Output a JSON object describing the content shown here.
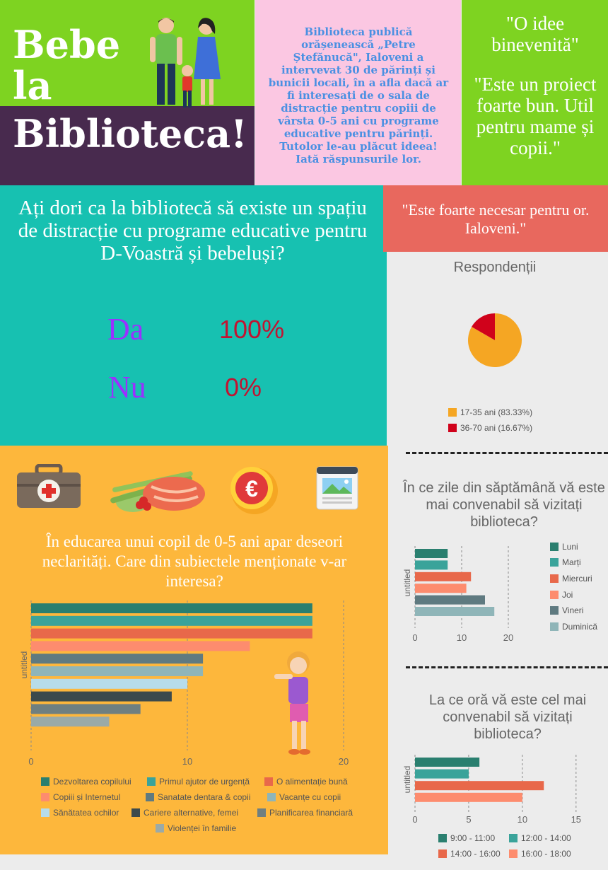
{
  "header": {
    "title_line1": "Bebe",
    "title_line2": "la",
    "title_line3": "Biblioteca!",
    "intro": "Biblioteca publică orășenească „Petre Ștefănucă\", Ialoveni a intervevat 30 de părinți și bunicii locali, în a afla dacă ar fi interesați de o sala de distracție pentru copiii de vârsta 0-5 ani cu programe educative pentru părinți. Tutolor le-au plăcut ideea! Iată răspunsurile lor.",
    "quote1": "\"O idee binevenită\"",
    "quote2": "\"Este un proiect foarte bun. Util pentru mame și copii.\""
  },
  "question": {
    "text": "Ați dori ca la bibliotecă să existe un spațiu de distracție cu programe educative pentru D-Voastră și bebeluși?",
    "yes_label": "Da",
    "yes_value": "100%",
    "no_label": "Nu",
    "no_value": "0%"
  },
  "quote3": "\"Este foarte necesar pentru or. Ialoveni.\"",
  "icons": [
    "medical-kit-icon",
    "food-icon",
    "euro-coin-icon",
    "newspaper-icon"
  ],
  "education_question": "În educarea unui copil de 0-5 ani apar deseori neclarități. Care din subiectele menționate v-ar interesa?",
  "chart_data": [
    {
      "type": "pie",
      "title": "Respondenții",
      "categories": [
        "17-35 ani (83.33%)",
        "36-70 ani (16.67%)"
      ],
      "values": [
        83.33,
        16.67
      ],
      "colors": [
        "#f5a623",
        "#d0021b"
      ],
      "legend": "bottom-left"
    },
    {
      "type": "bar",
      "orientation": "horizontal",
      "title": "În educarea unui copil de 0-5 ani apar deseori neclarități. Care din subiectele menționate v-ar interesa?",
      "ylabel": "untitled",
      "categories": [
        "Dezvoltarea copilului",
        "Primul ajutor de urgență",
        "O alimentație bună",
        "Copiii și Internetul",
        "Sanatate dentara & copii",
        "Vacanțe cu copii",
        "Sănătatea ochilor",
        "Cariere alternative, femei",
        "Planificarea financiară",
        "Violenței în familie"
      ],
      "values": [
        18,
        18,
        18,
        14,
        11,
        11,
        10,
        9,
        7,
        5
      ],
      "colors": [
        "#2a7f6f",
        "#3aa39a",
        "#e8684a",
        "#fd8c6e",
        "#5f7a80",
        "#8fb5b8",
        "#b7dcea",
        "#3c4a4c",
        "#6f7f80",
        "#9aaaa8"
      ],
      "xlim": [
        0,
        20
      ],
      "xticks": [
        0,
        10,
        20
      ],
      "grid": true,
      "legend": "bottom"
    },
    {
      "type": "bar",
      "orientation": "horizontal",
      "title": "În ce zile din săptămână vă este mai convenabil să vizitați biblioteca?",
      "ylabel": "untitled",
      "categories": [
        "Luni",
        "Marți",
        "Miercuri",
        "Joi",
        "Vineri",
        "Duminică"
      ],
      "values": [
        7,
        7,
        12,
        11,
        15,
        17
      ],
      "colors": [
        "#2a7f6f",
        "#3aa39a",
        "#e8684a",
        "#fd8c6e",
        "#5f7a80",
        "#8fb5b8"
      ],
      "xlim": [
        0,
        25
      ],
      "xticks": [
        0,
        10,
        20
      ],
      "grid": true,
      "legend": "right"
    },
    {
      "type": "bar",
      "orientation": "horizontal",
      "title": "La ce oră vă este cel mai convenabil să vizitați biblioteca?",
      "ylabel": "untitled",
      "categories": [
        "9:00 - 11:00",
        "12:00 - 14:00",
        "14:00 - 16:00",
        "16:00 - 18:00"
      ],
      "values": [
        6,
        5,
        12,
        10
      ],
      "colors": [
        "#2a7f6f",
        "#3aa39a",
        "#e8684a",
        "#fd8c6e"
      ],
      "xlim": [
        0,
        16
      ],
      "xticks": [
        0,
        5,
        10,
        15
      ],
      "grid": true,
      "legend": "bottom"
    }
  ]
}
